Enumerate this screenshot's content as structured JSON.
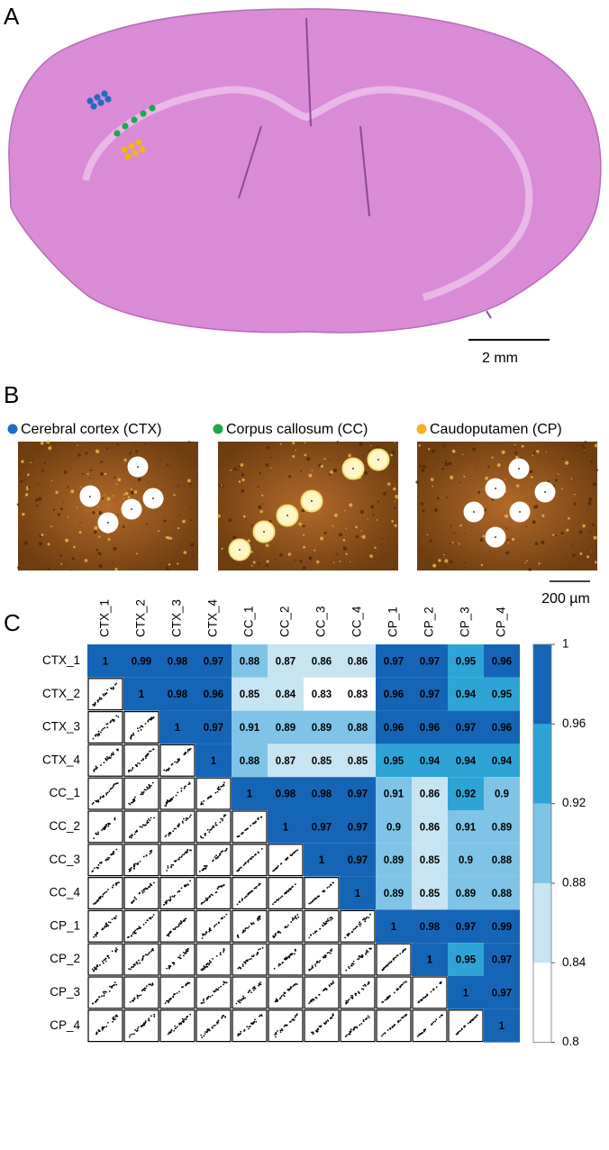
{
  "panel_labels": [
    "A",
    "B",
    "C"
  ],
  "panel_a": {
    "scale_bar": "2 mm"
  },
  "panel_b": {
    "legend": [
      {
        "name": "Cerebral cortex (CTX)",
        "color": "#1f6cc4"
      },
      {
        "name": "Corpus callosum (CC)",
        "color": "#1fa84a"
      },
      {
        "name": "Caudoputamen (CP)",
        "color": "#f5b21b"
      }
    ],
    "scale_bar": "200 µm"
  },
  "chart_data": {
    "type": "heatmap",
    "categories": [
      "CTX_1",
      "CTX_2",
      "CTX_3",
      "CTX_4",
      "CC_1",
      "CC_2",
      "CC_3",
      "CC_4",
      "CP_1",
      "CP_2",
      "CP_3",
      "CP_4"
    ],
    "values": [
      [
        1,
        0.99,
        0.98,
        0.97,
        0.88,
        0.87,
        0.86,
        0.86,
        0.97,
        0.97,
        0.95,
        0.96
      ],
      [
        null,
        1,
        0.98,
        0.96,
        0.85,
        0.84,
        0.83,
        0.83,
        0.96,
        0.97,
        0.94,
        0.95
      ],
      [
        null,
        null,
        1,
        0.97,
        0.91,
        0.89,
        0.89,
        0.88,
        0.96,
        0.96,
        0.97,
        0.96
      ],
      [
        null,
        null,
        null,
        1,
        0.88,
        0.87,
        0.85,
        0.85,
        0.95,
        0.94,
        0.94,
        0.94
      ],
      [
        null,
        null,
        null,
        null,
        1,
        0.98,
        0.98,
        0.97,
        0.91,
        0.86,
        0.92,
        0.9
      ],
      [
        null,
        null,
        null,
        null,
        null,
        1,
        0.97,
        0.97,
        0.9,
        0.86,
        0.91,
        0.89
      ],
      [
        null,
        null,
        null,
        null,
        null,
        null,
        1,
        0.97,
        0.89,
        0.85,
        0.9,
        0.88
      ],
      [
        null,
        null,
        null,
        null,
        null,
        null,
        null,
        1,
        0.89,
        0.85,
        0.89,
        0.88
      ],
      [
        null,
        null,
        null,
        null,
        null,
        null,
        null,
        null,
        1,
        0.98,
        0.97,
        0.99
      ],
      [
        null,
        null,
        null,
        null,
        null,
        null,
        null,
        null,
        null,
        1,
        0.95,
        0.97
      ],
      [
        null,
        null,
        null,
        null,
        null,
        null,
        null,
        null,
        null,
        null,
        1,
        0.97
      ],
      [
        null,
        null,
        null,
        null,
        null,
        null,
        null,
        null,
        null,
        null,
        null,
        1
      ]
    ],
    "clim": [
      0.8,
      1
    ],
    "colorbar_ticks": [
      0.8,
      0.84,
      0.88,
      0.92,
      0.96,
      1
    ],
    "colors": [
      "#ffffff",
      "#c7e4f2",
      "#7fc4e6",
      "#2ea4d6",
      "#1565b6"
    ]
  }
}
